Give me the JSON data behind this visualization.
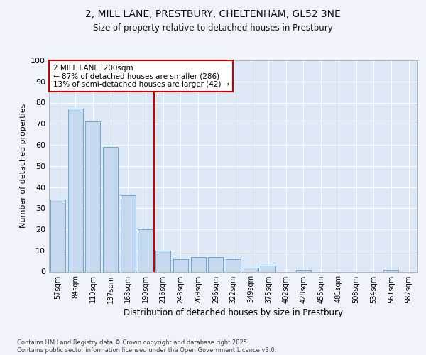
{
  "title1": "2, MILL LANE, PRESTBURY, CHELTENHAM, GL52 3NE",
  "title2": "Size of property relative to detached houses in Prestbury",
  "xlabel": "Distribution of detached houses by size in Prestbury",
  "ylabel": "Number of detached properties",
  "categories": [
    "57sqm",
    "84sqm",
    "110sqm",
    "137sqm",
    "163sqm",
    "190sqm",
    "216sqm",
    "243sqm",
    "269sqm",
    "296sqm",
    "322sqm",
    "349sqm",
    "375sqm",
    "402sqm",
    "428sqm",
    "455sqm",
    "481sqm",
    "508sqm",
    "534sqm",
    "561sqm",
    "587sqm"
  ],
  "values": [
    34,
    77,
    71,
    59,
    36,
    20,
    10,
    6,
    7,
    7,
    6,
    2,
    3,
    0,
    1,
    0,
    0,
    0,
    0,
    1,
    0
  ],
  "bar_color": "#c5d8ee",
  "bar_edge_color": "#6aaad4",
  "vline_x_index": 5.5,
  "vline_color": "#cc0000",
  "annotation_text": "2 MILL LANE: 200sqm\n← 87% of detached houses are smaller (286)\n13% of semi-detached houses are larger (42) →",
  "annotation_box_color": "#ffffff",
  "annotation_box_edge_color": "#cc0000",
  "bg_color": "#f0f4fa",
  "plot_bg_color": "#dce8f5",
  "grid_color": "#ffffff",
  "footer_text": "Contains HM Land Registry data © Crown copyright and database right 2025.\nContains public sector information licensed under the Open Government Licence v3.0.",
  "ylim": [
    0,
    100
  ],
  "yticks": [
    0,
    10,
    20,
    30,
    40,
    50,
    60,
    70,
    80,
    90,
    100
  ]
}
